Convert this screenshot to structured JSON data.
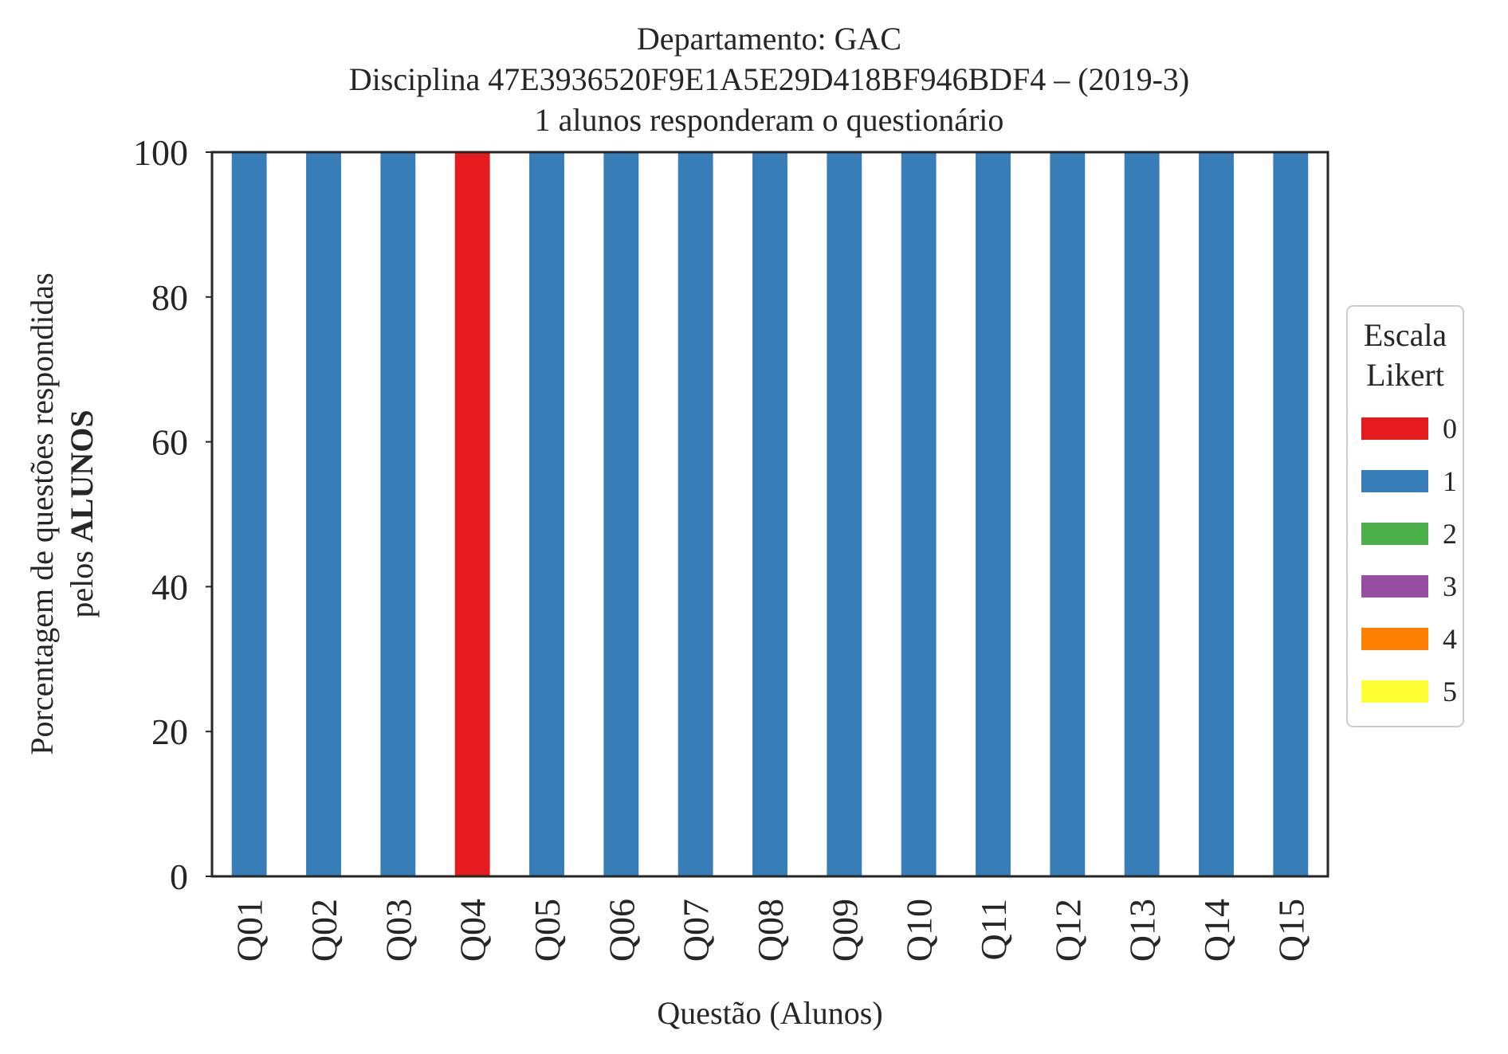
{
  "chart_data": {
    "type": "bar",
    "stacked": true,
    "title_lines": [
      "Departamento: GAC",
      "Disciplina 47E3936520F9E1A5E29D418BF946BDF4 – (2019-3)",
      "1 alunos responderam o questionário"
    ],
    "xlabel": "Questão (Alunos)",
    "ylabel_line1": "Porcentagem de questões respondidas",
    "ylabel_line2_prefix": "pelos ",
    "ylabel_line2_bold": "ALUNOS",
    "ylim": [
      0,
      100
    ],
    "yticks": [
      0,
      20,
      40,
      60,
      80,
      100
    ],
    "categories": [
      "Q01",
      "Q02",
      "Q03",
      "Q04",
      "Q05",
      "Q06",
      "Q07",
      "Q08",
      "Q09",
      "Q10",
      "Q11",
      "Q12",
      "Q13",
      "Q14",
      "Q15"
    ],
    "series": [
      {
        "name": "0",
        "color": "#e41a1c",
        "values": [
          0,
          0,
          0,
          100,
          0,
          0,
          0,
          0,
          0,
          0,
          0,
          0,
          0,
          0,
          0
        ]
      },
      {
        "name": "1",
        "color": "#377eb8",
        "values": [
          100,
          100,
          100,
          0,
          100,
          100,
          100,
          100,
          100,
          100,
          100,
          100,
          100,
          100,
          100
        ]
      },
      {
        "name": "2",
        "color": "#4daf4a",
        "values": [
          0,
          0,
          0,
          0,
          0,
          0,
          0,
          0,
          0,
          0,
          0,
          0,
          0,
          0,
          0
        ]
      },
      {
        "name": "3",
        "color": "#984ea3",
        "values": [
          0,
          0,
          0,
          0,
          0,
          0,
          0,
          0,
          0,
          0,
          0,
          0,
          0,
          0,
          0
        ]
      },
      {
        "name": "4",
        "color": "#ff7f00",
        "values": [
          0,
          0,
          0,
          0,
          0,
          0,
          0,
          0,
          0,
          0,
          0,
          0,
          0,
          0,
          0
        ]
      },
      {
        "name": "5",
        "color": "#ffff33",
        "values": [
          0,
          0,
          0,
          0,
          0,
          0,
          0,
          0,
          0,
          0,
          0,
          0,
          0,
          0,
          0
        ]
      }
    ],
    "legend": {
      "title_lines": [
        "Escala",
        "Likert"
      ],
      "placement": "center-right-outside"
    },
    "grid": false
  }
}
